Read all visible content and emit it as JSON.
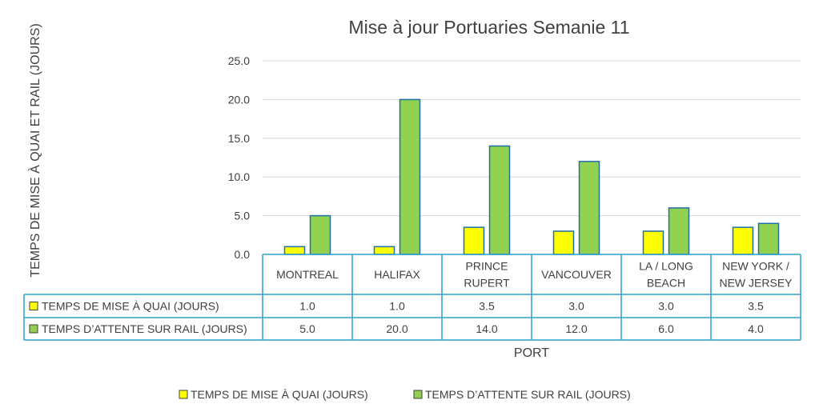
{
  "chart_data": {
    "type": "bar",
    "title": "Mise à jour Portuaries Semanie 11",
    "xlabel": "PORT",
    "ylabel": "TEMPS DE MISE À QUAI ET RAIL (JOURS)",
    "ylim": [
      0,
      25
    ],
    "yticks": [
      "0.0",
      "5.0",
      "10.0",
      "15.0",
      "20.0",
      "25.0"
    ],
    "grid": true,
    "legend": "bottom",
    "categories": [
      [
        "MONTREAL"
      ],
      [
        "HALIFAX"
      ],
      [
        "PRINCE",
        "RUPERT"
      ],
      [
        "VANCOUVER"
      ],
      [
        "LA / LONG",
        "BEACH"
      ],
      [
        "NEW YORK /",
        "NEW JERSEY"
      ]
    ],
    "series": [
      {
        "name": "TEMPS DE MISE À QUAI (JOURS)",
        "color": "#FFFF00",
        "values": [
          1.0,
          1.0,
          3.5,
          3.0,
          3.0,
          3.5
        ],
        "labels": [
          "1.0",
          "1.0",
          "3.5",
          "3.0",
          "3.0",
          "3.5"
        ]
      },
      {
        "name": "TEMPS  D’ATTENTE SUR RAIL (JOURS)",
        "color": "#92D050",
        "values": [
          5.0,
          20.0,
          14.0,
          12.0,
          6.0,
          4.0
        ],
        "labels": [
          "5.0",
          "20.0",
          "14.0",
          "12.0",
          "6.0",
          "4.0"
        ]
      }
    ],
    "bar_border_color": "#1F6FA8",
    "table_border_color": "#2BA3C8",
    "grid_color": "#D9D9D9"
  }
}
